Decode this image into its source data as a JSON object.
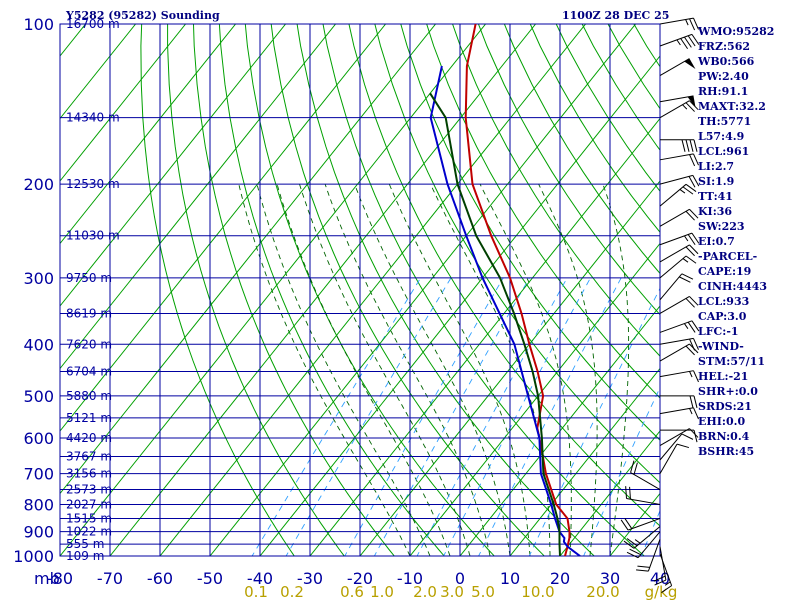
{
  "colors": {
    "frame": "#0000a0",
    "label": "#0000a0",
    "dry_adiabat": "#00a000",
    "moist_adiabat": "#006400",
    "mixing_ratio": "#30a0ff",
    "temperature": "#c00000",
    "dewpoint": "#0000cc",
    "wetbulb": "#004000",
    "header": "#000080",
    "wind": "#000000"
  },
  "header": {
    "title": "Y5282 (95282) Sounding",
    "timestamp": "1100Z 28 DEC 25"
  },
  "indices": [
    "WMO:95282",
    "FRZ:562",
    "WB0:566",
    "PW:2.40",
    "RH:91.1",
    "MAXT:32.2",
    "TH:5771",
    "L57:4.9",
    "LCL:961",
    "LI:2.7",
    "SI:1.9",
    "TT:41",
    "KI:36",
    "SW:223",
    "EI:0.7",
    "-PARCEL-",
    "CAPE:19",
    "CINH:4443",
    "LCL:933",
    "CAP:3.0",
    "LFC:-1",
    "-WIND-",
    "STM:57/11",
    "HEL:-21",
    "SHR+:0.0",
    "SRDS:21",
    "EHI:0.0",
    "BRN:0.4",
    "BSHR:45"
  ],
  "chart_data": {
    "type": "line",
    "subtype": "skew-t log-p sounding",
    "title": "Y5282 (95282) Sounding",
    "timestamp": "1100Z 28 DEC 25",
    "xlabel": "mb",
    "x_unit": "°C",
    "xlim": [
      -80,
      40
    ],
    "ylim_mb": [
      1000,
      100
    ],
    "pressure_ticks": [
      100,
      200,
      300,
      400,
      500,
      600,
      700,
      800,
      900,
      1000
    ],
    "pressure_tick_labels": [
      "100",
      "200",
      "300",
      "400",
      "500",
      "600",
      "700",
      "800",
      "900",
      "1000"
    ],
    "extra_isobars": [
      150,
      250,
      350,
      450,
      550,
      650,
      750,
      850,
      950
    ],
    "temperature_ticks": [
      -80,
      -70,
      -60,
      -50,
      -40,
      -30,
      -20,
      -10,
      0,
      10,
      20,
      30,
      40
    ],
    "temperature_tick_labels": [
      "-80",
      "-70",
      "-60",
      "-50",
      "-40",
      "-30",
      "-20",
      "-10",
      "0",
      "10",
      "20",
      "30",
      "40"
    ],
    "mixing_ratio_labels": [
      "0.1",
      "0.2",
      "0.6",
      "1.0",
      "2.0",
      "3.0",
      "5.0",
      "10.0",
      "20.0",
      "g/kg"
    ],
    "height_labels": [
      {
        "p": 100,
        "label": "16700 m"
      },
      {
        "p": 150,
        "label": "14340 m"
      },
      {
        "p": 200,
        "label": "12530 m"
      },
      {
        "p": 250,
        "label": "11030 m"
      },
      {
        "p": 300,
        "label": "9750 m"
      },
      {
        "p": 350,
        "label": "8619 m"
      },
      {
        "p": 400,
        "label": "7620 m"
      },
      {
        "p": 450,
        "label": "6704 m"
      },
      {
        "p": 500,
        "label": "5880 m"
      },
      {
        "p": 550,
        "label": "5121 m"
      },
      {
        "p": 600,
        "label": "4420 m"
      },
      {
        "p": 650,
        "label": "3767 m"
      },
      {
        "p": 700,
        "label": "3156 m"
      },
      {
        "p": 750,
        "label": "2573 m"
      },
      {
        "p": 800,
        "label": "2027 m"
      },
      {
        "p": 850,
        "label": "1515 m"
      },
      {
        "p": 900,
        "label": "1022 m"
      },
      {
        "p": 950,
        "label": "555 m"
      },
      {
        "p": 1000,
        "label": "109 m"
      }
    ],
    "series": [
      {
        "name": "Temperature",
        "points": [
          [
            1000,
            21
          ],
          [
            960,
            20
          ],
          [
            925,
            19
          ],
          [
            900,
            18
          ],
          [
            850,
            15.5
          ],
          [
            800,
            11
          ],
          [
            700,
            4
          ],
          [
            620,
            -1.5
          ],
          [
            600,
            -3
          ],
          [
            575,
            -5
          ],
          [
            500,
            -9
          ],
          [
            450,
            -14
          ],
          [
            400,
            -20
          ],
          [
            350,
            -26.5
          ],
          [
            300,
            -34.5
          ],
          [
            250,
            -45
          ],
          [
            200,
            -57
          ],
          [
            150,
            -69
          ],
          [
            120,
            -77
          ],
          [
            100,
            -82
          ]
        ]
      },
      {
        "name": "Dewpoint",
        "points": [
          [
            1000,
            24
          ],
          [
            980,
            22
          ],
          [
            960,
            20
          ],
          [
            940,
            18.5
          ],
          [
            925,
            18
          ],
          [
            900,
            16
          ],
          [
            850,
            13
          ],
          [
            800,
            10
          ],
          [
            700,
            3
          ],
          [
            600,
            -3
          ],
          [
            500,
            -12
          ],
          [
            400,
            -23
          ],
          [
            300,
            -40
          ],
          [
            250,
            -50
          ],
          [
            200,
            -62
          ],
          [
            150,
            -76
          ],
          [
            120,
            -82
          ]
        ]
      },
      {
        "name": "Wet bulb",
        "points": [
          [
            1000,
            20
          ],
          [
            950,
            18
          ],
          [
            900,
            16
          ],
          [
            850,
            13.5
          ],
          [
            800,
            10.5
          ],
          [
            700,
            3.5
          ],
          [
            600,
            -2.5
          ],
          [
            500,
            -10
          ],
          [
            450,
            -15
          ],
          [
            400,
            -21
          ],
          [
            350,
            -28
          ],
          [
            300,
            -36.5
          ],
          [
            250,
            -48
          ],
          [
            200,
            -60
          ],
          [
            150,
            -73
          ],
          [
            135,
            -80
          ]
        ]
      }
    ],
    "wind_barbs": [
      {
        "p": 100,
        "dir": 80,
        "kt": 25
      },
      {
        "p": 110,
        "dir": 70,
        "kt": 45
      },
      {
        "p": 125,
        "dir": 60,
        "kt": 50
      },
      {
        "p": 140,
        "dir": 80,
        "kt": 50
      },
      {
        "p": 150,
        "dir": 60,
        "kt": 25
      },
      {
        "p": 165,
        "dir": 90,
        "kt": 40
      },
      {
        "p": 180,
        "dir": 80,
        "kt": 20
      },
      {
        "p": 200,
        "dir": 75,
        "kt": 20
      },
      {
        "p": 220,
        "dir": 50,
        "kt": 25
      },
      {
        "p": 240,
        "dir": 60,
        "kt": 20
      },
      {
        "p": 260,
        "dir": 70,
        "kt": 25
      },
      {
        "p": 280,
        "dir": 60,
        "kt": 20
      },
      {
        "p": 300,
        "dir": 50,
        "kt": 15
      },
      {
        "p": 330,
        "dir": 40,
        "kt": 20
      },
      {
        "p": 350,
        "dir": 60,
        "kt": 20
      },
      {
        "p": 380,
        "dir": 70,
        "kt": 25
      },
      {
        "p": 400,
        "dir": 80,
        "kt": 20
      },
      {
        "p": 430,
        "dir": 60,
        "kt": 20
      },
      {
        "p": 460,
        "dir": 80,
        "kt": 15
      },
      {
        "p": 500,
        "dir": 90,
        "kt": 20
      },
      {
        "p": 540,
        "dir": 80,
        "kt": 15
      },
      {
        "p": 580,
        "dir": 90,
        "kt": 10
      },
      {
        "p": 620,
        "dir": 60,
        "kt": 10
      },
      {
        "p": 660,
        "dir": 40,
        "kt": 10
      },
      {
        "p": 700,
        "dir": 30,
        "kt": 10
      },
      {
        "p": 750,
        "dir": 300,
        "kt": 20
      },
      {
        "p": 800,
        "dir": 280,
        "kt": 20
      },
      {
        "p": 850,
        "dir": 250,
        "kt": 20
      },
      {
        "p": 880,
        "dir": 230,
        "kt": 25
      },
      {
        "p": 900,
        "dir": 220,
        "kt": 20
      },
      {
        "p": 930,
        "dir": 200,
        "kt": 20
      },
      {
        "p": 960,
        "dir": 170,
        "kt": 20
      },
      {
        "p": 990,
        "dir": 160,
        "kt": 15
      }
    ]
  }
}
